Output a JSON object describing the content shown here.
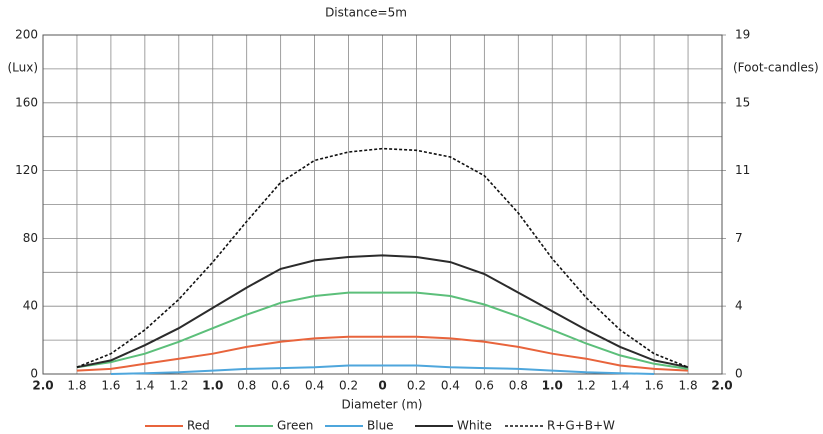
{
  "chart_data": {
    "type": "line",
    "title": "Distance=5m",
    "x_label": "Diameter (m)",
    "y_label": "(Lux)",
    "y2_label": "(Foot-candles)",
    "x": [
      -1.8,
      -1.6,
      -1.4,
      -1.2,
      -1.0,
      -0.8,
      -0.6,
      -0.4,
      -0.2,
      0,
      0.2,
      0.4,
      0.6,
      0.8,
      1.0,
      1.2,
      1.4,
      1.6,
      1.8
    ],
    "series": [
      {
        "name": "Red",
        "color": "#e8643c",
        "dashed": false,
        "values": [
          2,
          3,
          6,
          9,
          12,
          16,
          19,
          21,
          22,
          22,
          22,
          21,
          19,
          16,
          12,
          9,
          5,
          3,
          2
        ]
      },
      {
        "name": "Green",
        "color": "#5cbf7a",
        "dashed": false,
        "values": [
          4,
          7,
          12,
          19,
          27,
          35,
          42,
          46,
          48,
          48,
          48,
          46,
          41,
          34,
          26,
          18,
          11,
          6,
          3
        ]
      },
      {
        "name": "Blue",
        "color": "#4ea6dc",
        "dashed": false,
        "values": [
          null,
          0,
          0.5,
          1,
          2,
          3,
          3.5,
          4,
          5,
          5,
          5,
          4,
          3.5,
          3,
          2,
          1,
          0.5,
          0,
          null
        ]
      },
      {
        "name": "White",
        "color": "#2b2b2b",
        "dashed": false,
        "values": [
          4,
          8,
          17,
          27,
          39,
          51,
          62,
          67,
          69,
          70,
          69,
          66,
          59,
          48,
          37,
          26,
          16,
          8,
          4
        ]
      },
      {
        "name": "R+G+B+W",
        "color": "#111111",
        "dashed": true,
        "values": [
          4,
          12,
          26,
          44,
          66,
          90,
          113,
          126,
          131,
          133,
          132,
          128,
          117,
          95,
          68,
          45,
          26,
          12,
          4
        ]
      }
    ],
    "xlim": [
      -2,
      2
    ],
    "xticks": [
      {
        "value": -2,
        "label": "2.0"
      },
      {
        "value": -1.8,
        "label": "1.8"
      },
      {
        "value": -1.6,
        "label": "1.6"
      },
      {
        "value": -1.4,
        "label": "1.4"
      },
      {
        "value": -1.2,
        "label": "1.2"
      },
      {
        "value": -1,
        "label": "1.0"
      },
      {
        "value": -0.8,
        "label": "0.8"
      },
      {
        "value": -0.6,
        "label": "0.6"
      },
      {
        "value": -0.4,
        "label": "0.4"
      },
      {
        "value": -0.2,
        "label": "0.2"
      },
      0,
      0.2,
      0.4,
      0.6,
      0.8,
      {
        "value": 1,
        "label": "1.0"
      },
      1.2,
      1.4,
      1.6,
      1.8,
      {
        "value": 2,
        "label": "2.0"
      }
    ],
    "ylim": [
      0,
      200
    ],
    "yticks": [
      0,
      40,
      80,
      120,
      160,
      200
    ],
    "minor_yticks": [
      20,
      60,
      100,
      140,
      180
    ],
    "y2lim": [
      0,
      18.58
    ],
    "y2ticks": [
      0,
      {
        "value": 3.72,
        "label": "4"
      },
      {
        "value": 7.43,
        "label": "7"
      },
      {
        "value": 11.15,
        "label": "11"
      },
      {
        "value": 14.86,
        "label": "15"
      },
      {
        "value": 18.58,
        "label": "19"
      }
    ],
    "grid": true
  }
}
